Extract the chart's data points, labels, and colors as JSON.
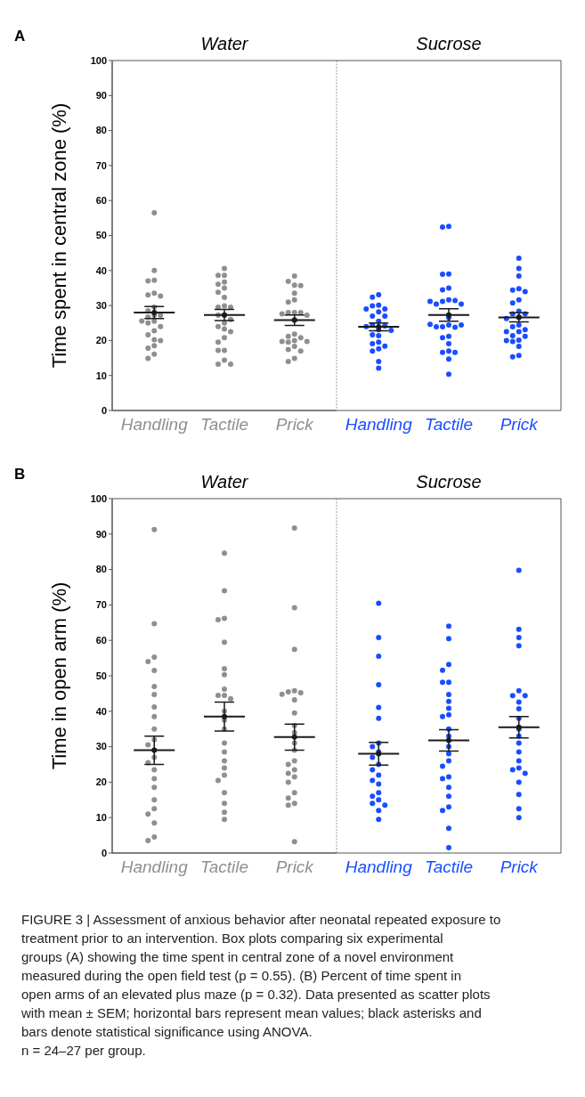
{
  "chart_data": [
    {
      "type": "scatter",
      "title": "Water",
      "ylabel": "Time spent in central zone (%)",
      "annotations": [
        "A"
      ],
      "categories": [
        "Handling",
        "Tactile",
        "Prick"
      ],
      "ylim": [
        0,
        100
      ],
      "yticks": [
        0,
        10,
        20,
        30,
        40,
        50,
        60,
        70,
        80,
        90,
        100
      ],
      "marker": "circle",
      "series": [
        {
          "color": "#8f8f8f",
          "x": [
            "Handling",
            "Handling",
            "Handling",
            "Handling",
            "Handling",
            "Handling",
            "Handling",
            "Handling",
            "Handling",
            "Handling",
            "Handling",
            "Handling",
            "Handling",
            "Handling",
            "Handling",
            "Handling",
            "Handling",
            "Handling",
            "Handling",
            "Handling",
            "Handling",
            "Handling",
            "Handling",
            "Handling",
            "Tactile",
            "Tactile",
            "Tactile",
            "Tactile",
            "Tactile",
            "Tactile",
            "Tactile",
            "Tactile",
            "Tactile",
            "Tactile",
            "Tactile",
            "Tactile",
            "Tactile",
            "Tactile",
            "Tactile",
            "Tactile",
            "Tactile",
            "Tactile",
            "Tactile",
            "Tactile",
            "Tactile",
            "Tactile",
            "Tactile",
            "Tactile",
            "Tactile",
            "Prick",
            "Prick",
            "Prick",
            "Prick",
            "Prick",
            "Prick",
            "Prick",
            "Prick",
            "Prick",
            "Prick",
            "Prick",
            "Prick",
            "Prick",
            "Prick",
            "Prick",
            "Prick",
            "Prick",
            "Prick",
            "Prick",
            "Prick",
            "Prick",
            "Prick",
            "Prick",
            "Prick",
            "Prick"
          ],
          "values": [
            56.5,
            40,
            37.2,
            37,
            33.5,
            33,
            32.7,
            29.5,
            28.5,
            27.2,
            27.2,
            26.7,
            25.6,
            25.5,
            25,
            24,
            22.8,
            21.6,
            20.2,
            20,
            18.5,
            17.8,
            16.1,
            14.9,
            40.6,
            38.6,
            38.6,
            36.7,
            36.1,
            35,
            33.8,
            32.3,
            29.9,
            29.5,
            29.5,
            27.2,
            27.2,
            26,
            25,
            24,
            23.3,
            22.5,
            20.8,
            19.5,
            17.2,
            17.2,
            14.4,
            13.2,
            13.2,
            38.4,
            36.9,
            35.8,
            35.7,
            33.5,
            31.6,
            31,
            28,
            28,
            28,
            27.6,
            27.2,
            25.9,
            21.8,
            21.2,
            20.8,
            20,
            19.7,
            19.7,
            19.5,
            18.3,
            17.4,
            17,
            14.9,
            14
          ]
        },
        {
          "color": "#1a1a1a",
          "x": [
            "Handling",
            "Tactile",
            "Prick"
          ],
          "values": [
            28,
            27.3,
            25.8
          ],
          "errors": [
            1.7,
            1.6,
            1.5
          ]
        }
      ]
    },
    {
      "type": "scatter",
      "title": "Sucrose",
      "categories": [
        "Handling",
        "Tactile",
        "Prick"
      ],
      "ylim": [
        0,
        100
      ],
      "tick_labels": "x",
      "marker": "circle",
      "series": [
        {
          "color": "#1a4dff",
          "x": [
            "Handling",
            "Handling",
            "Handling",
            "Handling",
            "Handling",
            "Handling",
            "Handling",
            "Handling",
            "Handling",
            "Handling",
            "Handling",
            "Handling",
            "Handling",
            "Handling",
            "Handling",
            "Handling",
            "Handling",
            "Handling",
            "Handling",
            "Handling",
            "Handling",
            "Handling",
            "Handling",
            "Handling",
            "Tactile",
            "Tactile",
            "Tactile",
            "Tactile",
            "Tactile",
            "Tactile",
            "Tactile",
            "Tactile",
            "Tactile",
            "Tactile",
            "Tactile",
            "Tactile",
            "Tactile",
            "Tactile",
            "Tactile",
            "Tactile",
            "Tactile",
            "Tactile",
            "Tactile",
            "Tactile",
            "Tactile",
            "Tactile",
            "Tactile",
            "Tactile",
            "Tactile",
            "Tactile",
            "Tactile",
            "Prick",
            "Prick",
            "Prick",
            "Prick",
            "Prick",
            "Prick",
            "Prick",
            "Prick",
            "Prick",
            "Prick",
            "Prick",
            "Prick",
            "Prick",
            "Prick",
            "Prick",
            "Prick",
            "Prick",
            "Prick",
            "Prick",
            "Prick",
            "Prick",
            "Prick",
            "Prick",
            "Prick",
            "Prick",
            "Prick"
          ],
          "values": [
            33.1,
            32.4,
            30.1,
            29.9,
            29,
            29,
            28.2,
            27,
            27,
            25.5,
            24.4,
            24.2,
            24,
            23.1,
            22.9,
            21.6,
            21.4,
            19.5,
            19.1,
            18.4,
            17.6,
            17,
            14,
            12.1,
            52.6,
            52.4,
            39,
            38.9,
            35,
            34.5,
            31.6,
            31.2,
            31.4,
            30.4,
            30.4,
            31.2,
            26.5,
            24.4,
            23.9,
            23.8,
            23.9,
            24.4,
            24.6,
            21.2,
            20.8,
            19.1,
            17,
            16.6,
            16.6,
            14.7,
            10.4,
            43.5,
            40.6,
            38.4,
            34.8,
            34.4,
            34,
            31.6,
            30.7,
            28.4,
            27.6,
            27.6,
            26.7,
            26.3,
            24.4,
            23.9,
            23.1,
            22.5,
            22.5,
            21.4,
            21.2,
            20.1,
            20,
            19.7,
            18.3,
            15.7,
            15.3
          ]
        },
        {
          "color": "#1a1a1a",
          "x": [
            "Handling",
            "Tactile",
            "Prick"
          ],
          "values": [
            23.9,
            27.3,
            26.6
          ],
          "errors": [
            1.1,
            1.8,
            1.3
          ]
        }
      ]
    },
    {
      "type": "scatter",
      "title": "Water",
      "ylabel": "Time in open arm (%)",
      "annotations": [
        "B"
      ],
      "categories": [
        "Handling",
        "Tactile",
        "Prick"
      ],
      "ylim": [
        0,
        100
      ],
      "yticks": [
        0,
        10,
        20,
        30,
        40,
        50,
        60,
        70,
        80,
        90,
        100
      ],
      "marker": "circle",
      "series": [
        {
          "color": "#8f8f8f",
          "x": [
            "Handling",
            "Handling",
            "Handling",
            "Handling",
            "Handling",
            "Handling",
            "Handling",
            "Handling",
            "Handling",
            "Handling",
            "Handling",
            "Handling",
            "Handling",
            "Handling",
            "Handling",
            "Handling",
            "Handling",
            "Handling",
            "Handling",
            "Handling",
            "Handling",
            "Handling",
            "Handling",
            "Handling",
            "Tactile",
            "Tactile",
            "Tactile",
            "Tactile",
            "Tactile",
            "Tactile",
            "Tactile",
            "Tactile",
            "Tactile",
            "Tactile",
            "Tactile",
            "Tactile",
            "Tactile",
            "Tactile",
            "Tactile",
            "Tactile",
            "Tactile",
            "Tactile",
            "Tactile",
            "Tactile",
            "Tactile",
            "Tactile",
            "Tactile",
            "Tactile",
            "Prick",
            "Prick",
            "Prick",
            "Prick",
            "Prick",
            "Prick",
            "Prick",
            "Prick",
            "Prick",
            "Prick",
            "Prick",
            "Prick",
            "Prick",
            "Prick",
            "Prick",
            "Prick",
            "Prick",
            "Prick",
            "Prick",
            "Prick",
            "Prick",
            "Prick",
            "Prick",
            "Prick"
          ],
          "values": [
            91.3,
            64.7,
            55.3,
            54,
            51.5,
            47,
            44.7,
            41.2,
            38.5,
            35,
            32,
            30.5,
            29,
            27,
            25.5,
            23.5,
            21,
            18.5,
            15,
            12.5,
            11,
            8.5,
            4.5,
            3.5,
            84.6,
            74,
            66.2,
            65.8,
            59.5,
            52,
            50.3,
            46.2,
            44.5,
            44.5,
            43.5,
            40,
            37.5,
            35,
            31,
            28.5,
            26,
            24,
            22,
            20.5,
            17,
            14,
            11.5,
            9.5,
            91.7,
            69.2,
            57.5,
            45.8,
            45.5,
            45.2,
            44.8,
            43.2,
            39.5,
            36,
            34,
            31,
            29,
            26,
            25,
            23.5,
            22.5,
            21.5,
            20,
            17,
            15.5,
            14,
            13.5,
            3.2
          ]
        },
        {
          "color": "#1a1a1a",
          "x": [
            "Handling",
            "Tactile",
            "Prick"
          ],
          "values": [
            29,
            38.5,
            32.7
          ],
          "errors": [
            4,
            4.1,
            3.7
          ]
        }
      ]
    },
    {
      "type": "scatter",
      "title": "Sucrose",
      "categories": [
        "Handling",
        "Tactile",
        "Prick"
      ],
      "ylim": [
        0,
        100
      ],
      "tick_labels": "x",
      "marker": "circle",
      "series": [
        {
          "color": "#1a4dff",
          "x": [
            "Handling",
            "Handling",
            "Handling",
            "Handling",
            "Handling",
            "Handling",
            "Handling",
            "Handling",
            "Handling",
            "Handling",
            "Handling",
            "Handling",
            "Handling",
            "Handling",
            "Handling",
            "Handling",
            "Handling",
            "Handling",
            "Handling",
            "Handling",
            "Handling",
            "Handling",
            "Tactile",
            "Tactile",
            "Tactile",
            "Tactile",
            "Tactile",
            "Tactile",
            "Tactile",
            "Tactile",
            "Tactile",
            "Tactile",
            "Tactile",
            "Tactile",
            "Tactile",
            "Tactile",
            "Tactile",
            "Tactile",
            "Tactile",
            "Tactile",
            "Tactile",
            "Tactile",
            "Tactile",
            "Tactile",
            "Tactile",
            "Tactile",
            "Tactile",
            "Prick",
            "Prick",
            "Prick",
            "Prick",
            "Prick",
            "Prick",
            "Prick",
            "Prick",
            "Prick",
            "Prick",
            "Prick",
            "Prick",
            "Prick",
            "Prick",
            "Prick",
            "Prick",
            "Prick",
            "Prick",
            "Prick",
            "Prick",
            "Prick",
            "Prick"
          ],
          "values": [
            70.5,
            60.8,
            55.5,
            47.5,
            41.1,
            38,
            31,
            30,
            28.5,
            27,
            25,
            23.5,
            22,
            20.5,
            19.5,
            17,
            16,
            15,
            14,
            13.5,
            12,
            9.5,
            64,
            60.5,
            53.2,
            51.6,
            48.2,
            48.2,
            44.7,
            42.8,
            40.8,
            39,
            38.5,
            35,
            33,
            30,
            28,
            26,
            24.5,
            21.5,
            21,
            18.5,
            16,
            13,
            12,
            7,
            1.5,
            79.8,
            63.1,
            60.8,
            58.5,
            45.8,
            44.4,
            44.4,
            42.6,
            40.7,
            38,
            35,
            33,
            31,
            28.5,
            26,
            24,
            23.5,
            22.5,
            20,
            16.5,
            12.5,
            10
          ]
        },
        {
          "color": "#1a1a1a",
          "x": [
            "Handling",
            "Tactile",
            "Prick"
          ],
          "values": [
            28,
            31.8,
            35.5
          ],
          "errors": [
            3.2,
            3,
            3
          ]
        }
      ]
    },
    {
      "type": "other",
      "annotations": [
        "FIGURE 3 | Assessment of anxious behavior after neonatal repeated exposure to treatment prior to an intervention. Box plots comparing six experimental groups (A) showing the time spent in central zone of a novel environment measured during the open field test (p = 0.55). (B) Percent of time spent in open arms of an elevated plus maze (p = 0.32). Data presented as scatter plots with mean ± SEM; horizontal bars represent mean values; black asterisks and bars denote statistical significance using ANOVA.",
        "n = 24–27 per group."
      ]
    }
  ]
}
